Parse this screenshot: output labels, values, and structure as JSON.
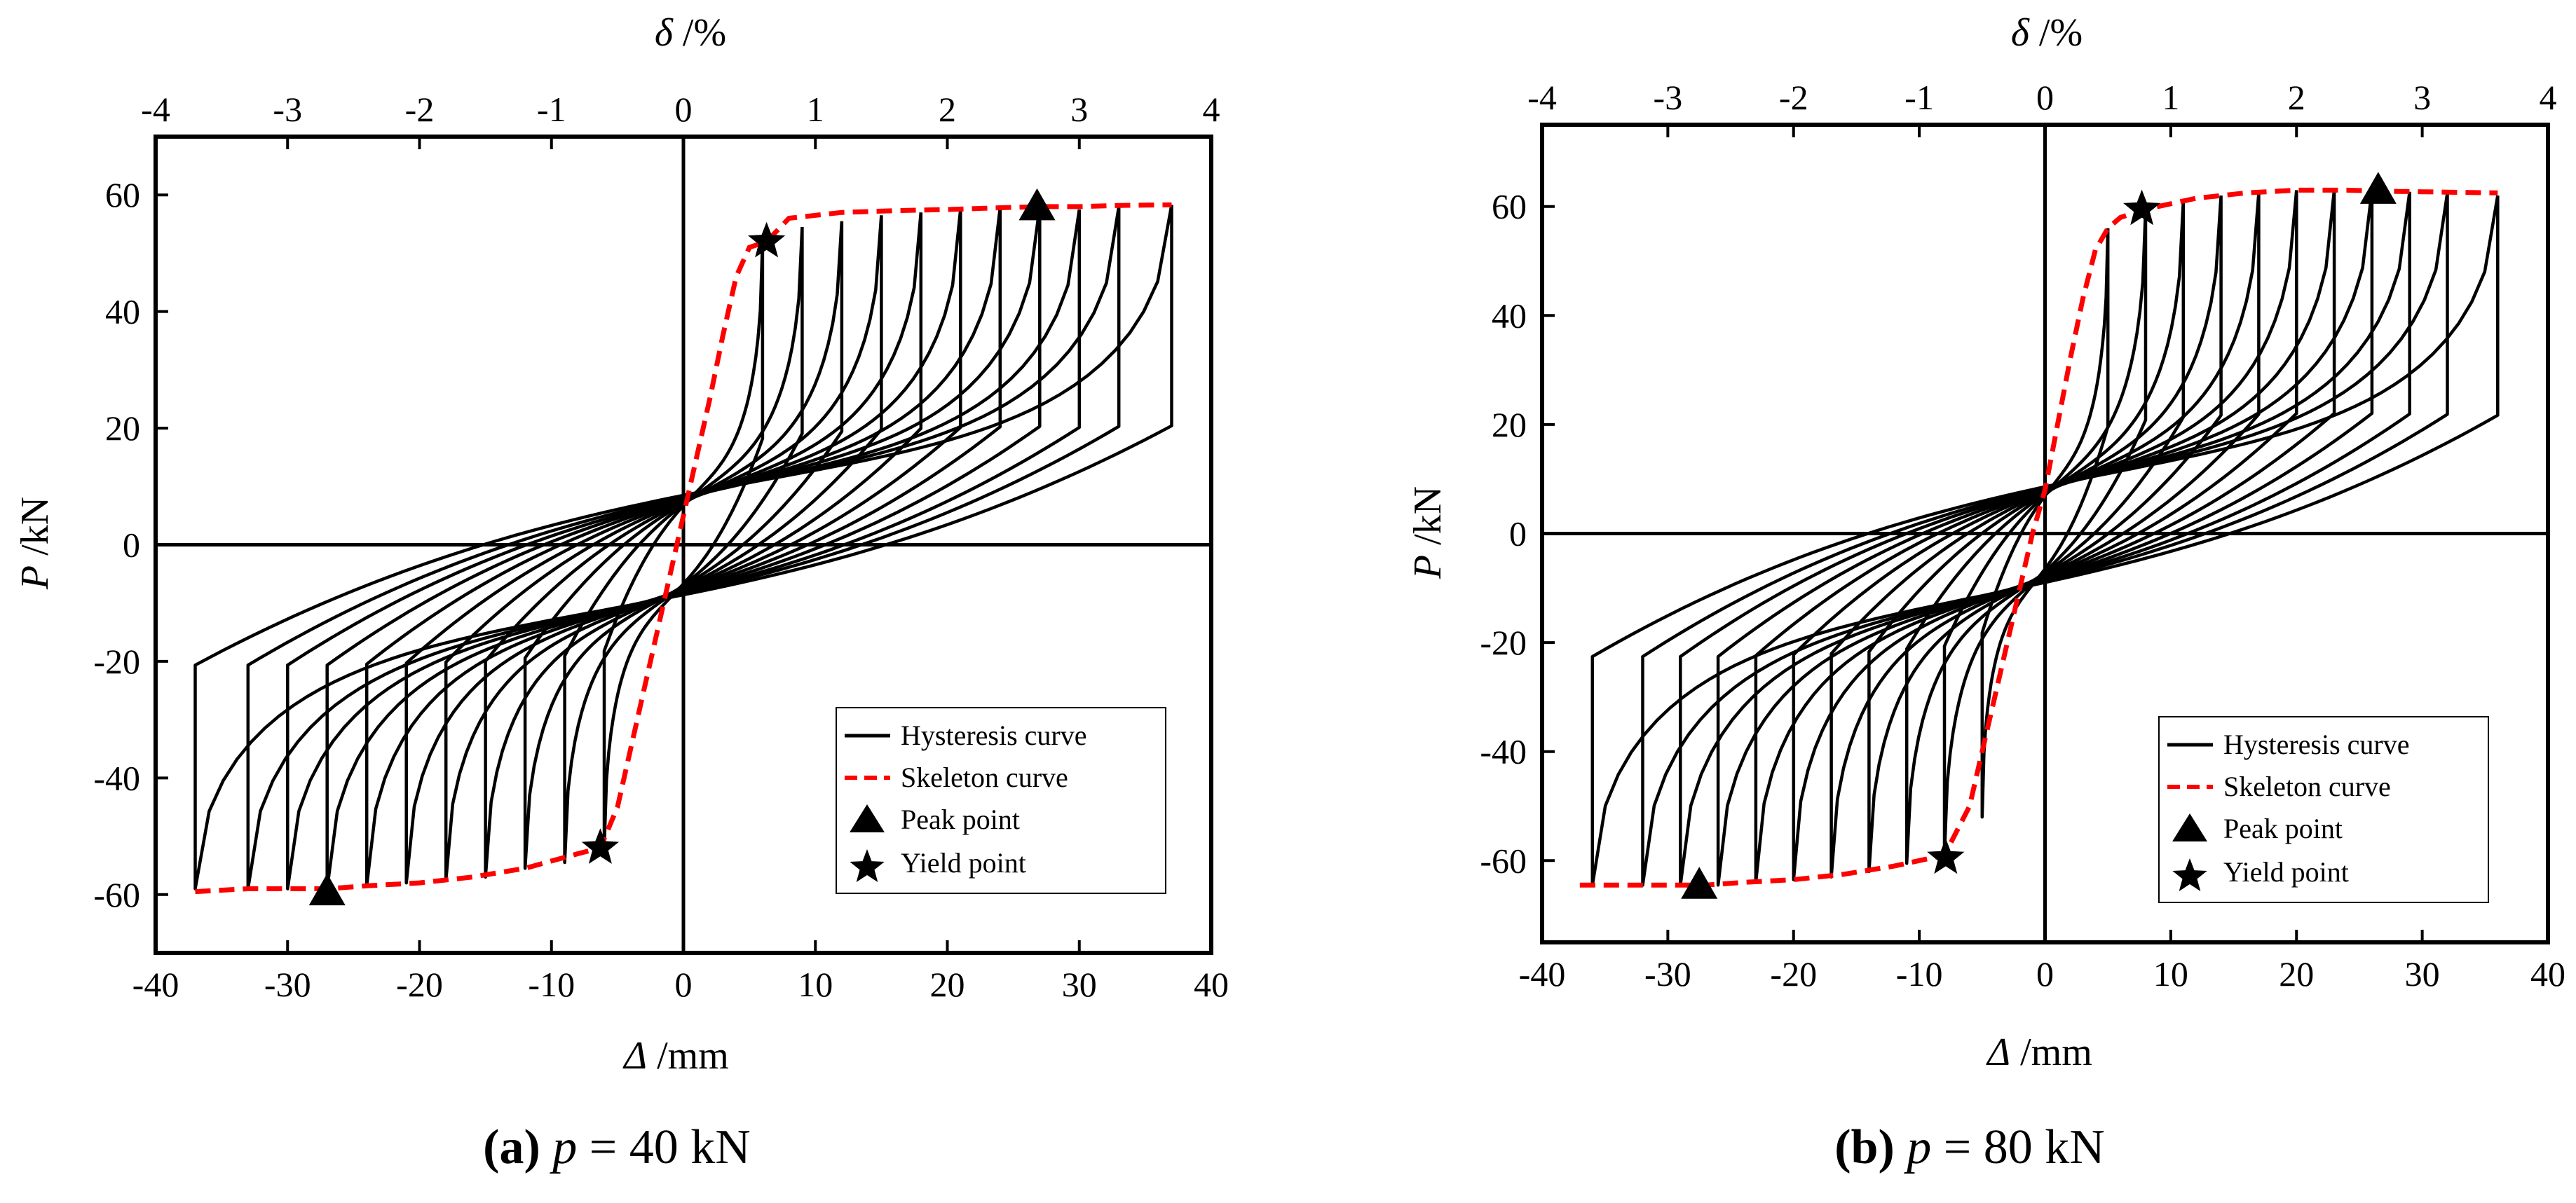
{
  "figure": {
    "captions": [
      {
        "letter": "(a)",
        "sym": "p",
        "rest": " = 40 kN"
      },
      {
        "letter": "(b)",
        "sym": "p",
        "rest": " = 80 kN"
      }
    ]
  },
  "chart_data": [
    {
      "type": "line",
      "title": "",
      "xlabel": {
        "sym": "Δ",
        "unit": " /mm"
      },
      "ylabel": {
        "sym": "P",
        "unit": " /kN"
      },
      "x2label": {
        "sym": "δ",
        "unit": " /%"
      },
      "xlim": [
        -40,
        40
      ],
      "ylim": [
        -70,
        70
      ],
      "x2lim": [
        -4,
        4
      ],
      "xticks": [
        -40,
        -30,
        -20,
        -10,
        0,
        10,
        20,
        30,
        40
      ],
      "x2ticks": [
        -4,
        -3,
        -2,
        -1,
        0,
        1,
        2,
        3,
        4
      ],
      "yticks": [
        -60,
        -40,
        -20,
        0,
        20,
        40,
        60
      ],
      "legend": {
        "position": "bottom-right",
        "entries": [
          "Hysteresis curve",
          "Skeleton curve",
          "Peak point",
          "Yield point"
        ]
      },
      "skeleton": {
        "x": [
          -37,
          -33,
          -30,
          -27,
          -24,
          -20,
          -16,
          -12,
          -8,
          -6.3,
          -5,
          -4,
          -3,
          -2,
          -1,
          0,
          1,
          2,
          3,
          4,
          5,
          6.3,
          8,
          12,
          16,
          20,
          24,
          27,
          30,
          33,
          37
        ],
        "y": [
          -59.5,
          -59,
          -59,
          -59,
          -58.5,
          -58,
          -57,
          -55.5,
          -53,
          -52,
          -45,
          -35,
          -25,
          -15,
          -5,
          5,
          15,
          25,
          36,
          46,
          51,
          52,
          56,
          57,
          57.3,
          57.5,
          57.8,
          58,
          58,
          58.2,
          58.3
        ]
      },
      "loops": [
        {
          "amp": 6,
          "pos_max": 52,
          "neg_max": -52
        },
        {
          "amp": 9,
          "pos_max": 54.5,
          "neg_max": -54.5
        },
        {
          "amp": 12,
          "pos_max": 55.5,
          "neg_max": -55.5
        },
        {
          "amp": 15,
          "pos_max": 56.5,
          "neg_max": -57
        },
        {
          "amp": 18,
          "pos_max": 57,
          "neg_max": -57.5
        },
        {
          "amp": 21,
          "pos_max": 57.5,
          "neg_max": -58
        },
        {
          "amp": 24,
          "pos_max": 57.8,
          "neg_max": -58.5
        },
        {
          "amp": 27,
          "pos_max": 58,
          "neg_max": -59
        },
        {
          "amp": 30,
          "pos_max": 57.5,
          "neg_max": -59
        },
        {
          "amp": 33,
          "pos_max": 58,
          "neg_max": -59
        },
        {
          "amp": 37,
          "pos_max": 58.3,
          "neg_max": -59
        }
      ],
      "peak_points": [
        {
          "x": 26.8,
          "y": 58
        },
        {
          "x": -27,
          "y": -59.5
        }
      ],
      "yield_points": [
        {
          "x": 6.3,
          "y": 52
        },
        {
          "x": -6.3,
          "y": -52
        }
      ]
    },
    {
      "type": "line",
      "title": "",
      "xlabel": {
        "sym": "Δ",
        "unit": " /mm"
      },
      "ylabel": {
        "sym": "P",
        "unit": " /kN"
      },
      "x2label": {
        "sym": "δ",
        "unit": " /%"
      },
      "xlim": [
        -40,
        40
      ],
      "ylim": [
        -75,
        75
      ],
      "x2lim": [
        -4,
        4
      ],
      "xticks": [
        -40,
        -30,
        -20,
        -10,
        0,
        10,
        20,
        30,
        40
      ],
      "x2ticks": [
        -4,
        -3,
        -2,
        -1,
        0,
        1,
        2,
        3,
        4
      ],
      "yticks": [
        -60,
        -40,
        -20,
        0,
        20,
        40,
        60
      ],
      "legend": {
        "position": "bottom-right",
        "entries": [
          "Hysteresis curve",
          "Skeleton curve",
          "Peak point",
          "Yield point"
        ]
      },
      "skeleton": {
        "x": [
          -37,
          -33,
          -30,
          -27,
          -24,
          -20,
          -16,
          -12,
          -8,
          -6,
          -5,
          -4,
          -3,
          -2,
          -1,
          0,
          1,
          2,
          3,
          4,
          5,
          6,
          8,
          12,
          16,
          20,
          24,
          27,
          30,
          33,
          36
        ],
        "y": [
          -64.5,
          -64.5,
          -64.5,
          -64.5,
          -64,
          -63.5,
          -62.5,
          -61,
          -59,
          -50,
          -40,
          -30,
          -20,
          -10,
          0,
          8,
          20,
          32,
          43,
          52,
          56,
          58,
          59.5,
          61.5,
          62.5,
          63,
          63,
          62.8,
          62.7,
          62.6,
          62.5
        ]
      },
      "loops": [
        {
          "amp": 5,
          "pos_max": 56,
          "neg_max": -52
        },
        {
          "amp": 8,
          "pos_max": 59.5,
          "neg_max": -59
        },
        {
          "amp": 11,
          "pos_max": 61,
          "neg_max": -60.5
        },
        {
          "amp": 14,
          "pos_max": 62,
          "neg_max": -62
        },
        {
          "amp": 17,
          "pos_max": 62.5,
          "neg_max": -63
        },
        {
          "amp": 20,
          "pos_max": 63,
          "neg_max": -63.5
        },
        {
          "amp": 23,
          "pos_max": 63,
          "neg_max": -64
        },
        {
          "amp": 26,
          "pos_max": 63,
          "neg_max": -64.5
        },
        {
          "amp": 29,
          "pos_max": 62.7,
          "neg_max": -64.5
        },
        {
          "amp": 32,
          "pos_max": 62.5,
          "neg_max": -64.5
        },
        {
          "amp": 36,
          "pos_max": 62,
          "neg_max": -64.5
        }
      ],
      "peak_points": [
        {
          "x": 26.5,
          "y": 63
        },
        {
          "x": -27.5,
          "y": -64.5
        }
      ],
      "yield_points": [
        {
          "x": 7.7,
          "y": 59.5
        },
        {
          "x": -7.9,
          "y": -59.5
        }
      ]
    }
  ]
}
